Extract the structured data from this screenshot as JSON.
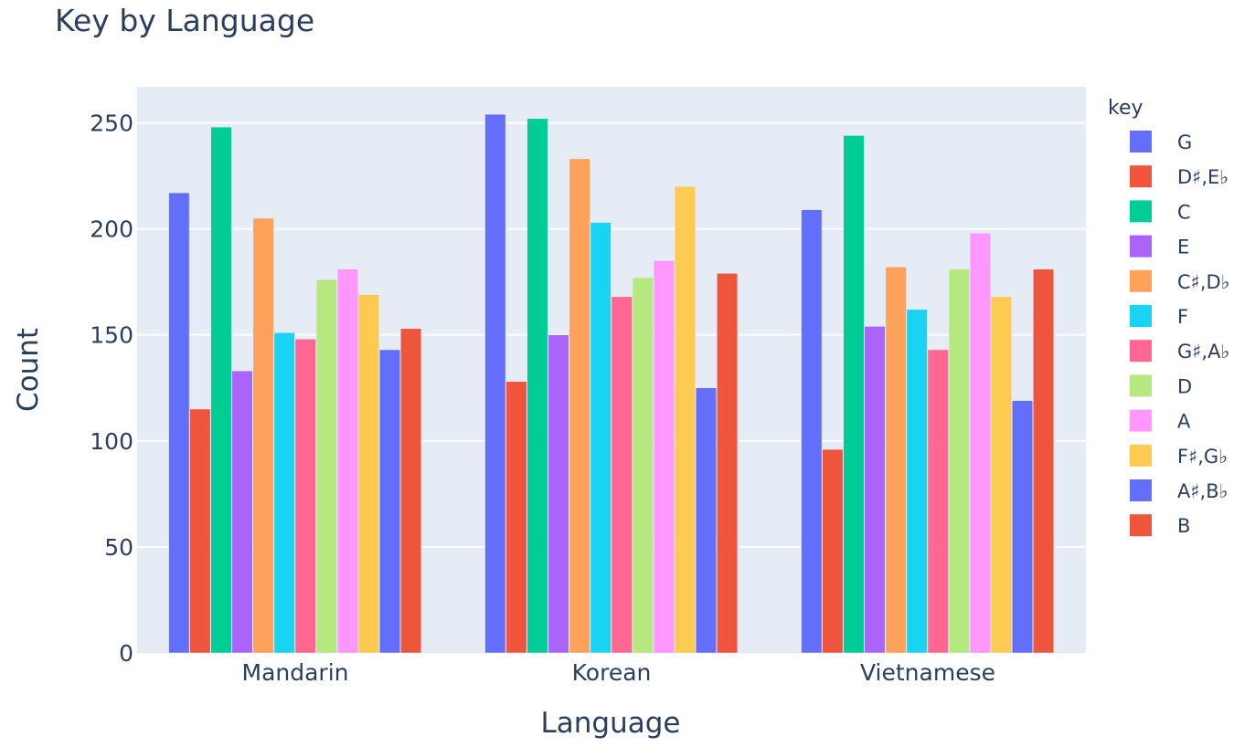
{
  "chart_data": {
    "type": "bar",
    "barmode": "group",
    "title": "Key by Language",
    "xlabel": "Language",
    "ylabel": "Count",
    "categories": [
      "Mandarin",
      "Korean",
      "Vietnamese"
    ],
    "ylim": [
      0,
      267
    ],
    "yticks": [
      0,
      50,
      100,
      150,
      200,
      250
    ],
    "grid": true,
    "legend": {
      "title": "key",
      "position": "right"
    },
    "series": [
      {
        "name": "G",
        "color": "#636efa",
        "values": [
          217,
          254,
          209
        ]
      },
      {
        "name": "D♯,E♭",
        "color": "#EF553B",
        "values": [
          115,
          128,
          96
        ]
      },
      {
        "name": "C",
        "color": "#00cc96",
        "values": [
          248,
          252,
          244
        ]
      },
      {
        "name": "E",
        "color": "#ab63fa",
        "values": [
          133,
          150,
          154
        ]
      },
      {
        "name": "C♯,D♭",
        "color": "#FFA15A",
        "values": [
          205,
          233,
          182
        ]
      },
      {
        "name": "F",
        "color": "#19d3f3",
        "values": [
          151,
          203,
          162
        ]
      },
      {
        "name": "G♯,A♭",
        "color": "#FF6692",
        "values": [
          148,
          168,
          143
        ]
      },
      {
        "name": "D",
        "color": "#B6E880",
        "values": [
          176,
          177,
          181
        ]
      },
      {
        "name": "A",
        "color": "#FF97FF",
        "values": [
          181,
          185,
          198
        ]
      },
      {
        "name": "F♯,G♭",
        "color": "#FECB52",
        "values": [
          169,
          220,
          168
        ]
      },
      {
        "name": "A♯,B♭",
        "color": "#636efa",
        "values": [
          143,
          125,
          119
        ]
      },
      {
        "name": "B",
        "color": "#EF553B",
        "values": [
          153,
          179,
          181
        ]
      }
    ]
  },
  "colors": {
    "plot_bg": "#E5ECF6",
    "grid": "#ffffff",
    "text": "#2a3f5f"
  }
}
